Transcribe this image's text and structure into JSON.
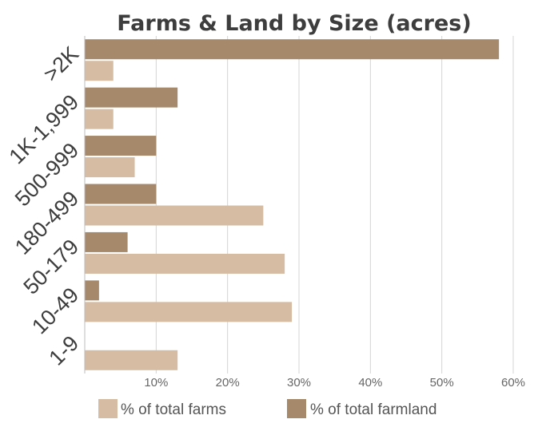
{
  "chart_data": {
    "type": "bar",
    "orientation": "horizontal",
    "title": "Farms & Land by Size (acres)",
    "categories": [
      ">2K",
      "1K-1,999",
      "500-999",
      "180-499",
      "50-179",
      "10-49",
      "1-9"
    ],
    "series": [
      {
        "name": "% of total farmland",
        "color": "#a6896b",
        "values": [
          58,
          13,
          10,
          10,
          6,
          2,
          0
        ]
      },
      {
        "name": "% of total farms",
        "color": "#d6bca2",
        "values": [
          4,
          4,
          7,
          25,
          28,
          29,
          13
        ]
      }
    ],
    "xlim": [
      0,
      60
    ],
    "xticks": [
      10,
      20,
      30,
      40,
      50,
      60
    ],
    "xtick_labels": [
      "10%",
      "20%",
      "30%",
      "40%",
      "50%",
      "60%"
    ],
    "grid": true,
    "legend": {
      "position": "bottom",
      "entries": [
        {
          "label": "% of total farms",
          "color": "#d6bca2"
        },
        {
          "label": "% of total farmland",
          "color": "#a6896b"
        }
      ]
    }
  }
}
